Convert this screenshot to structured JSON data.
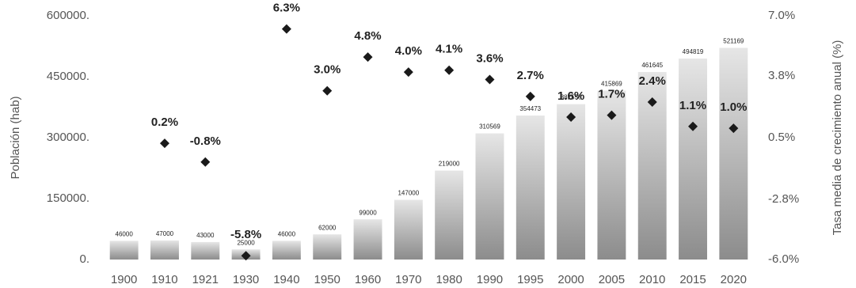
{
  "chart_data": {
    "type": "bar-scatter",
    "categories": [
      "1900",
      "1910",
      "1921",
      "1930",
      "1940",
      "1950",
      "1960",
      "1970",
      "1980",
      "1990",
      "1995",
      "2000",
      "2005",
      "2010",
      "2015",
      "2020"
    ],
    "series": [
      {
        "name": "Población (hab)",
        "type": "bar",
        "color": "#9a9a9a",
        "values": [
          46000,
          47000,
          43000,
          25000,
          46000,
          62000,
          99000,
          147000,
          219000,
          310569,
          354473,
          382558,
          415869,
          461645,
          494819,
          521169
        ]
      },
      {
        "name": "Tasa media de crecimiento anual (%)",
        "type": "scatter",
        "axis": "y2",
        "color": "#1a1a1a",
        "values": [
          null,
          0.2,
          -0.8,
          -5.8,
          6.3,
          3.0,
          4.8,
          4.0,
          4.1,
          3.6,
          2.7,
          1.6,
          1.7,
          2.4,
          1.1,
          1.0
        ],
        "value_labels": [
          null,
          "0.2%",
          "-0.8%",
          "-5.8%",
          "6.3%",
          "3.0%",
          "4.8%",
          "4.0%",
          "4.1%",
          "3.6%",
          "2.7%",
          "1.6%",
          "1.7%",
          "2.4%",
          "1.1%",
          "1.0%"
        ]
      }
    ],
    "y_label": "Población (hab)",
    "y2_label": "Tasa media de crecimiento anual (%)",
    "ylim": [
      0,
      600000
    ],
    "yticks": [
      {
        "value": 0,
        "label": "0."
      },
      {
        "value": 150000,
        "label": "150000."
      },
      {
        "value": 300000,
        "label": "300000."
      },
      {
        "value": 450000,
        "label": "450000."
      },
      {
        "value": 600000,
        "label": "600000."
      }
    ],
    "y2lim": [
      -6.0,
      7.0
    ],
    "y2ticks": [
      {
        "value": -6.0,
        "label": "-6.0%"
      },
      {
        "value": -2.8,
        "label": "-2.8%"
      },
      {
        "value": 0.5,
        "label": "0.5%"
      },
      {
        "value": 3.8,
        "label": "3.8%"
      },
      {
        "value": 7.0,
        "label": "7.0%"
      }
    ],
    "grid": false
  }
}
